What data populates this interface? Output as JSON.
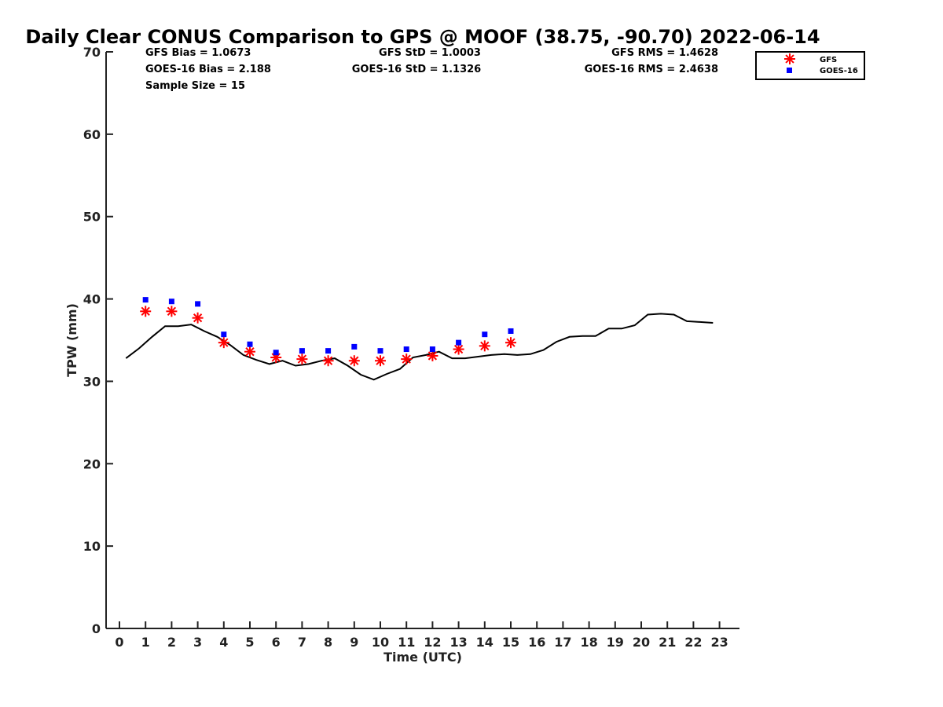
{
  "chart_data": {
    "type": "line",
    "title": "Daily Clear CONUS Comparison to GPS @ MOOF (38.75, -90.70) 2022-06-14",
    "xlabel": "Time (UTC)",
    "ylabel": "TPW (mm)",
    "xlim": [
      -0.5,
      23.7
    ],
    "ylim": [
      0,
      70
    ],
    "x_ticks": [
      0,
      1,
      2,
      3,
      4,
      5,
      6,
      7,
      8,
      9,
      10,
      11,
      12,
      13,
      14,
      15,
      16,
      17,
      18,
      19,
      20,
      21,
      22,
      23
    ],
    "y_ticks": [
      0,
      10,
      20,
      30,
      40,
      50,
      60,
      70
    ],
    "grid": false,
    "legend_position": "top-right",
    "stats": {
      "gfs_bias": "GFS Bias = 1.0673",
      "goes_bias": "GOES-16 Bias = 2.188",
      "sample_size": "Sample Size = 15",
      "gfs_std": "GFS StD = 1.0003",
      "goes_std": "GOES-16 StD = 1.1326",
      "gfs_rms": "GFS RMS = 1.4628",
      "goes_rms": "GOES-16 RMS = 2.4638"
    },
    "series": [
      {
        "name": "GPS",
        "kind": "line",
        "color": "#000000",
        "x": [
          0.25,
          0.75,
          1.25,
          1.75,
          2.25,
          2.75,
          3.25,
          3.75,
          4.25,
          4.75,
          5.25,
          5.75,
          6.25,
          6.75,
          7.25,
          7.75,
          8.25,
          8.75,
          9.25,
          9.75,
          10.25,
          10.75,
          11.25,
          11.75,
          12.25,
          12.75,
          13.25,
          13.75,
          14.25,
          14.75,
          15.25,
          15.75,
          16.25,
          16.75,
          17.25,
          17.75,
          18.25,
          18.75,
          19.25,
          19.75,
          20.25,
          20.75,
          21.25,
          21.75,
          22.25,
          22.75
        ],
        "y": [
          32.8,
          34.0,
          35.4,
          36.7,
          36.7,
          36.9,
          36.1,
          35.4,
          34.4,
          33.2,
          32.6,
          32.1,
          32.5,
          31.9,
          32.1,
          32.5,
          32.8,
          31.9,
          30.8,
          30.2,
          30.9,
          31.5,
          32.9,
          33.2,
          33.6,
          32.8,
          32.8,
          33.0,
          33.2,
          33.3,
          33.2,
          33.3,
          33.8,
          34.8,
          35.4,
          35.5,
          35.5,
          36.4,
          36.4,
          36.8,
          38.1,
          38.2,
          38.1,
          37.3,
          37.2,
          37.1
        ]
      },
      {
        "name": "GFS",
        "kind": "marker",
        "marker": "asterisk",
        "color": "#ff0000",
        "x": [
          1,
          2,
          3,
          4,
          5,
          6,
          7,
          8,
          9,
          10,
          11,
          12,
          13,
          14,
          15
        ],
        "y": [
          38.5,
          38.5,
          37.7,
          34.7,
          33.6,
          32.9,
          32.7,
          32.5,
          32.5,
          32.5,
          32.7,
          33.1,
          33.9,
          34.3,
          34.7
        ]
      },
      {
        "name": "GOES-16",
        "kind": "marker",
        "marker": "square",
        "color": "#0000ff",
        "x": [
          1,
          2,
          3,
          4,
          5,
          6,
          7,
          8,
          9,
          10,
          11,
          12,
          13,
          14,
          15
        ],
        "y": [
          39.9,
          39.7,
          39.4,
          35.7,
          34.5,
          33.5,
          33.7,
          33.7,
          34.2,
          33.7,
          33.9,
          33.9,
          34.7,
          35.7,
          36.1
        ]
      }
    ]
  }
}
